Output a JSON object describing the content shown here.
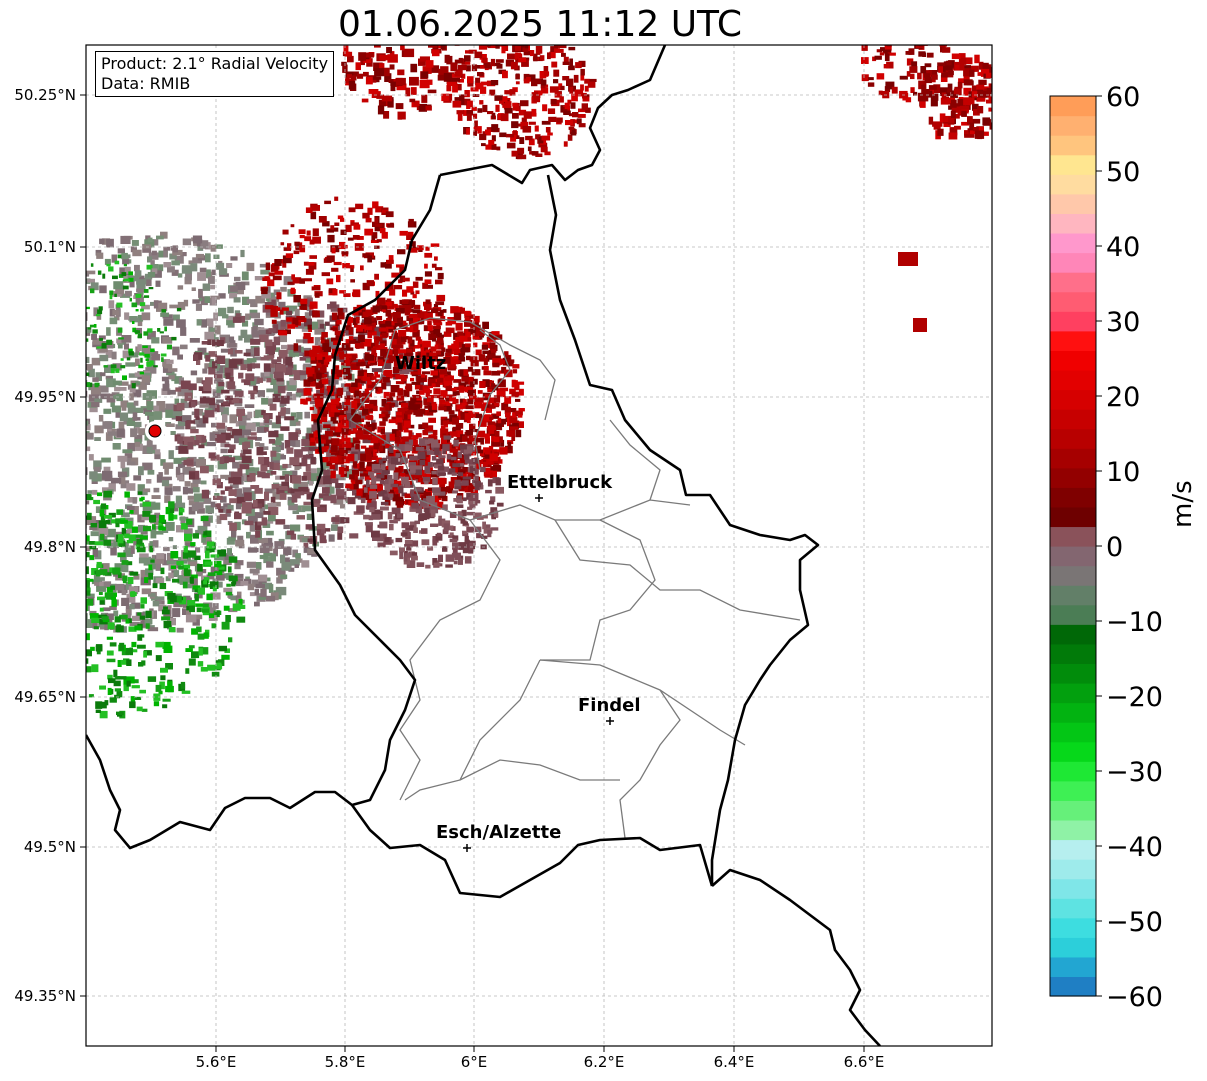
{
  "title": "01.06.2025 11:12 UTC",
  "info": {
    "product": "Product: 2.1° Radial Velocity",
    "data_source": "Data: RMIB"
  },
  "axes": {
    "y_ticks": [
      "50.25°N",
      "50.1°N",
      "49.95°N",
      "49.8°N",
      "49.65°N",
      "49.5°N",
      "49.35°N"
    ],
    "x_ticks": [
      "5.6°E",
      "5.8°E",
      "6°E",
      "6.2°E",
      "6.4°E",
      "6.6°E"
    ]
  },
  "cities": [
    {
      "name": "Wiltz"
    },
    {
      "name": "Ettelbruck"
    },
    {
      "name": "Findel"
    },
    {
      "name": "Esch/Alzette"
    }
  ],
  "colorbar": {
    "unit": "m/s",
    "ticks": [
      "60",
      "50",
      "40",
      "30",
      "20",
      "10",
      "0",
      "−10",
      "−20",
      "−30",
      "−40",
      "−50",
      "−60"
    ],
    "colors": [
      "#1f7fc4",
      "#22a6d2",
      "#2ccfda",
      "#3ddde0",
      "#5ee3e2",
      "#7fe6e8",
      "#9eebeb",
      "#b6efef",
      "#8ff2a6",
      "#66f07a",
      "#3ef054",
      "#1ee834",
      "#06d81a",
      "#03c615",
      "#02b311",
      "#02a00e",
      "#018c0b",
      "#017a09",
      "#006807",
      "#4b7d55",
      "#627f68",
      "#7a7575",
      "#836670",
      "#8a525a",
      "#6e0000",
      "#7f0000",
      "#930000",
      "#a60000",
      "#b80000",
      "#c70000",
      "#d60000",
      "#e30000",
      "#f00000",
      "#ff1010",
      "#ff4060",
      "#ff5c72",
      "#ff6f8a",
      "#ff86b8",
      "#ff98cc",
      "#ffb6c0",
      "#ffc8aa",
      "#ffdca0",
      "#ffe690",
      "#ffc57e",
      "#ffb070",
      "#ff9d58"
    ]
  }
}
